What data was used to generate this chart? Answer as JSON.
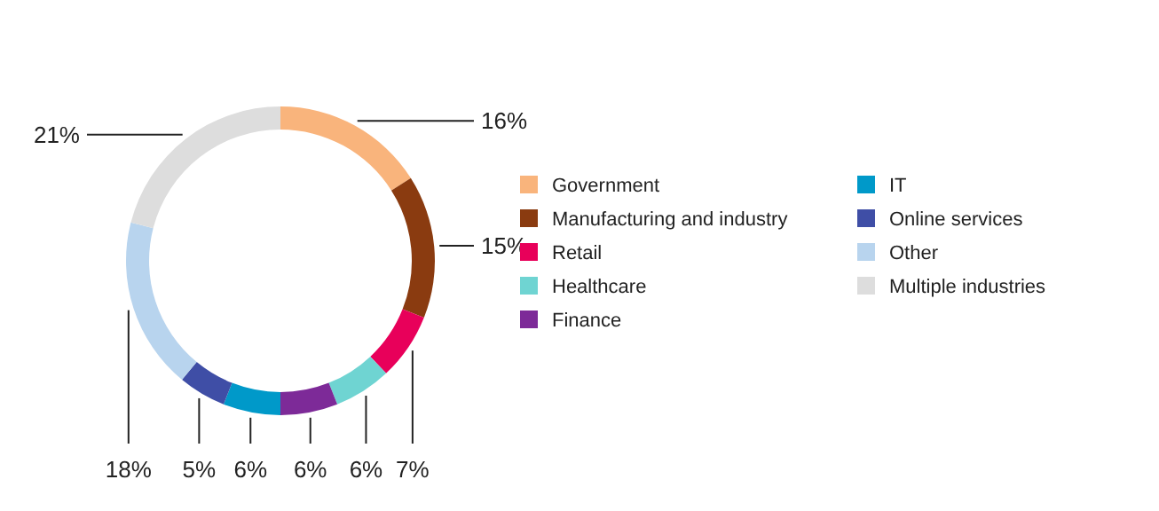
{
  "chart_data": {
    "type": "donut",
    "categories": [
      "Government",
      "Manufacturing and industry",
      "Retail",
      "Healthcare",
      "Finance",
      "IT",
      "Online services",
      "Other",
      "Multiple industries"
    ],
    "values": [
      16,
      15,
      7,
      6,
      6,
      6,
      5,
      18,
      21
    ],
    "colors": [
      "#f9b47c",
      "#8a3b10",
      "#e8005a",
      "#6fd4d2",
      "#7d2a98",
      "#0099c9",
      "#3f4ea6",
      "#b8d4ee",
      "#dddddd"
    ],
    "value_labels": [
      "16%",
      "15%",
      "7%",
      "6%",
      "6%",
      "6%",
      "5%",
      "18%",
      "21%"
    ],
    "legend": "right"
  }
}
